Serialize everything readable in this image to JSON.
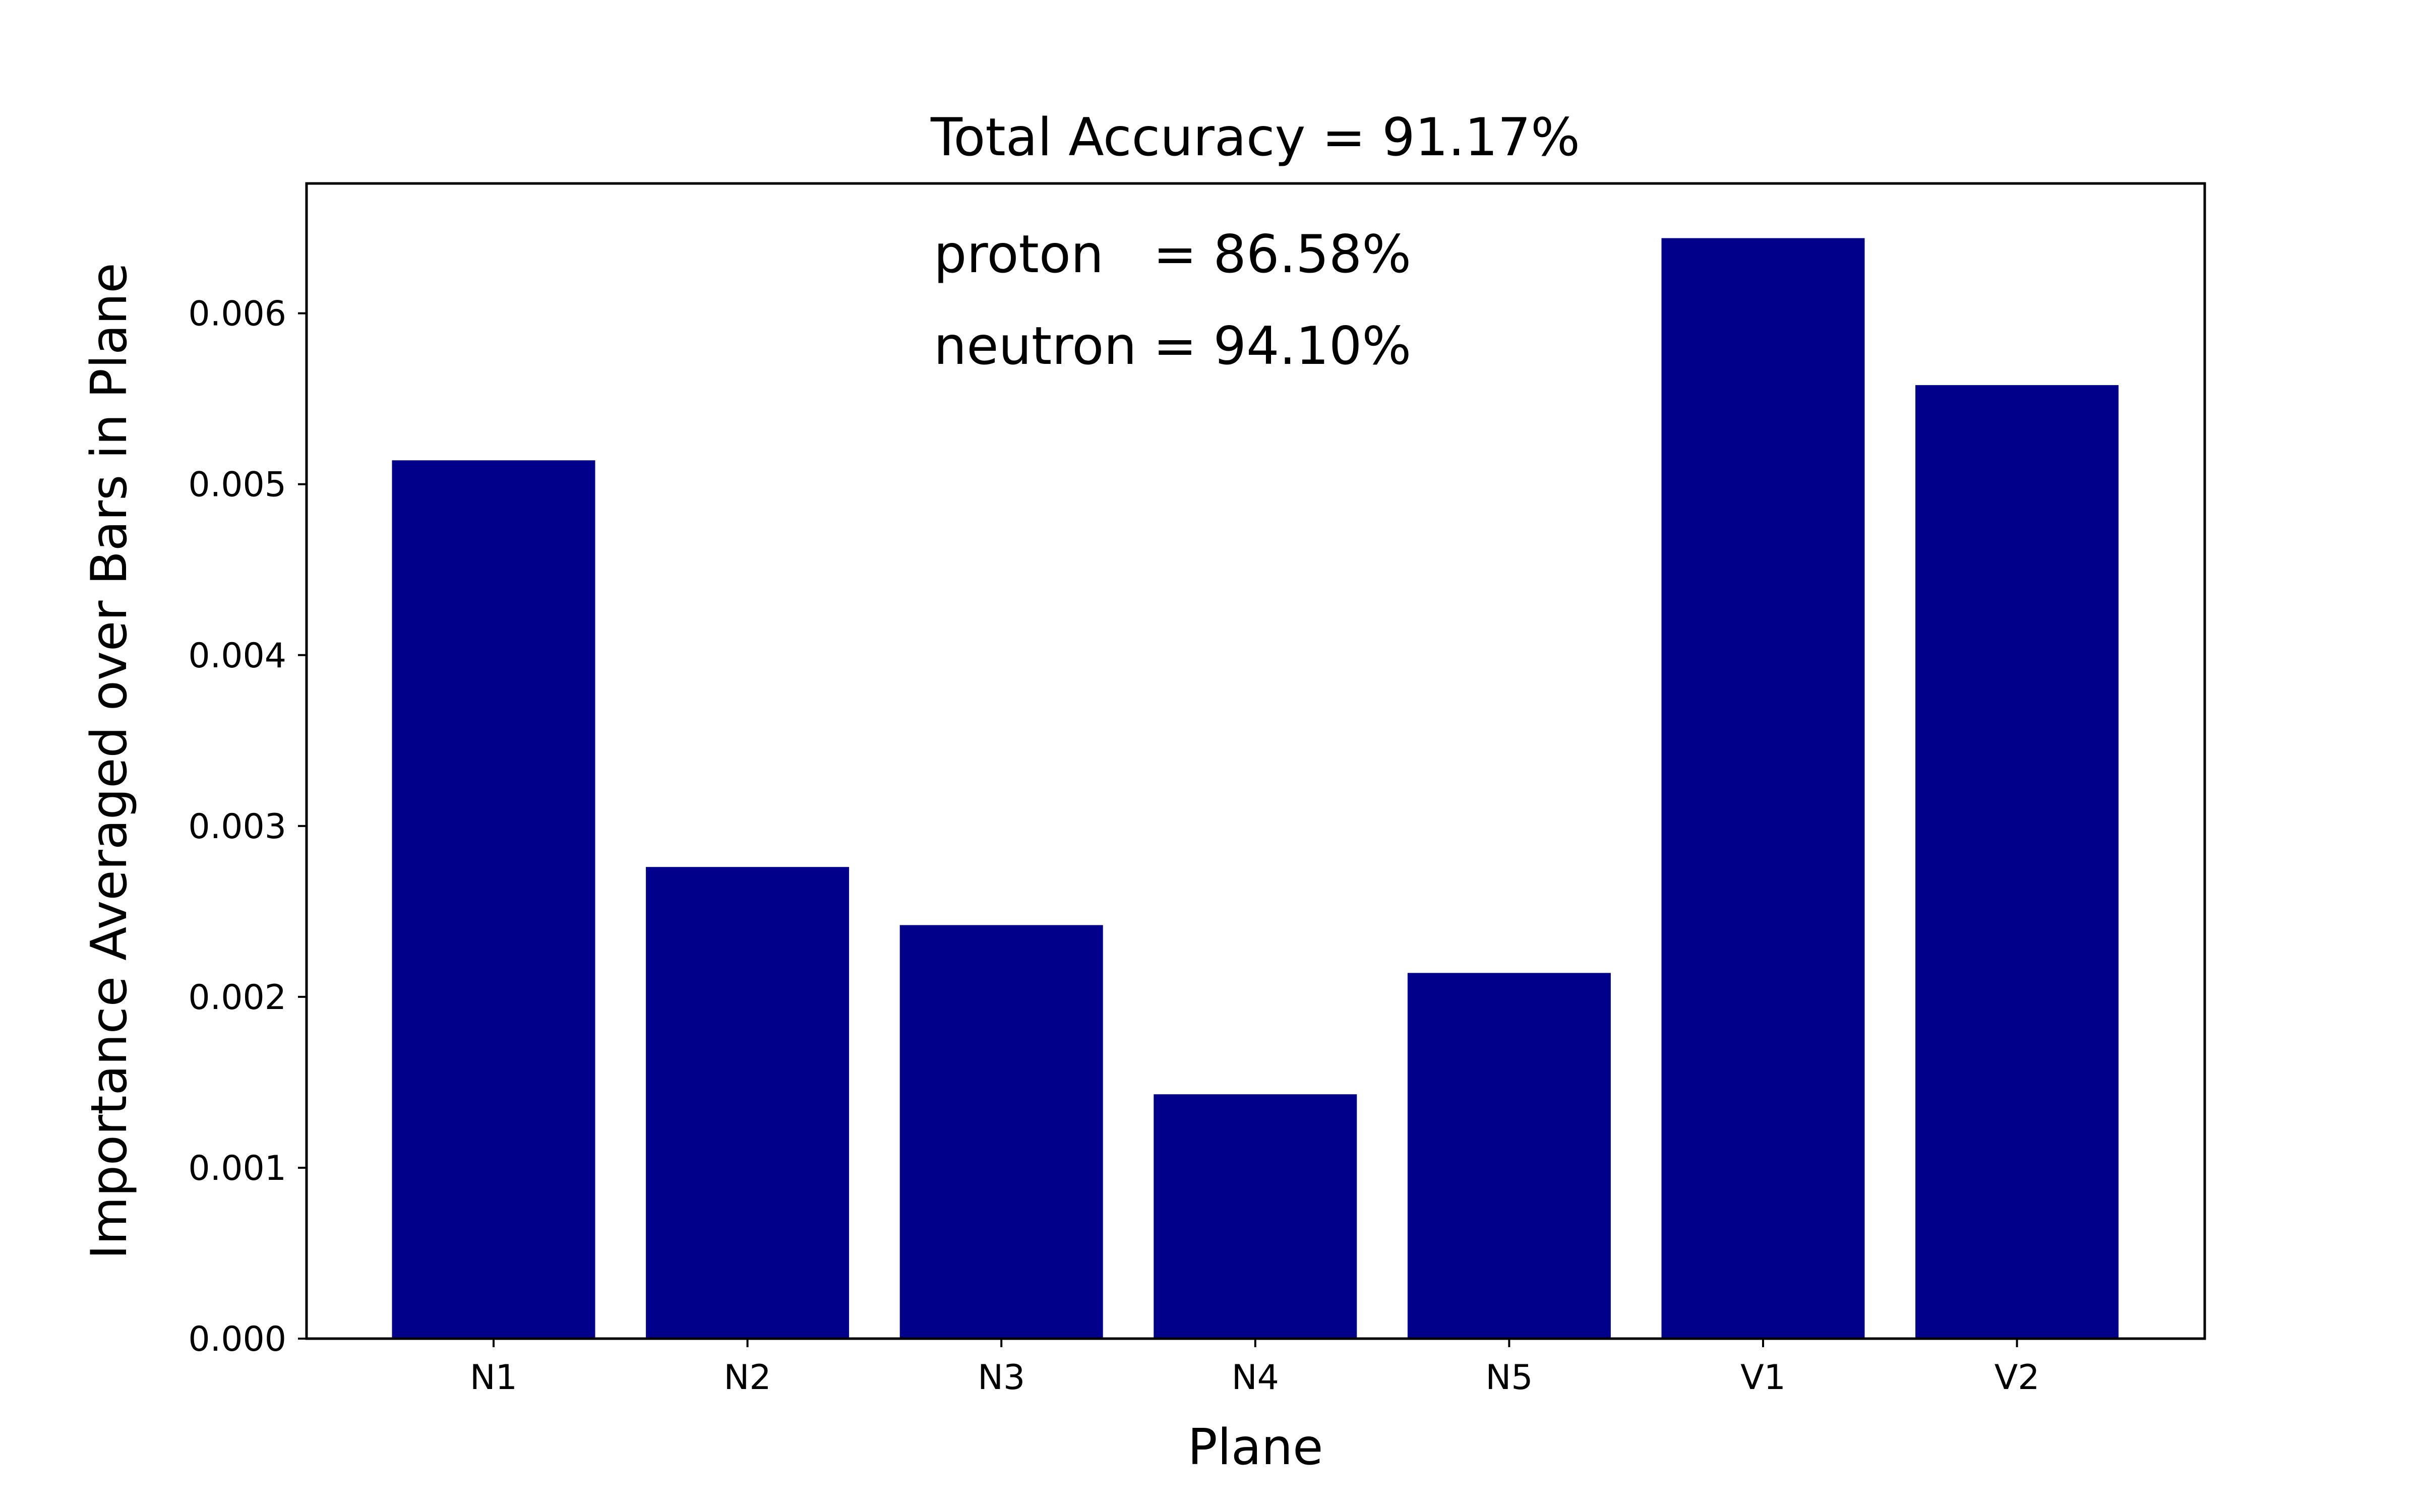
{
  "chart_data": {
    "type": "bar",
    "title": "Total Accuracy = 91.17%",
    "xlabel": "Plane",
    "ylabel": "Importance Averaged over Bars in Plane",
    "categories": [
      "N1",
      "N2",
      "N3",
      "N4",
      "N5",
      "V1",
      "V2"
    ],
    "values": [
      0.00514,
      0.00276,
      0.00242,
      0.00143,
      0.00214,
      0.00644,
      0.00558
    ],
    "ylim": [
      0,
      0.00676
    ],
    "yticks": [
      0.0,
      0.001,
      0.002,
      0.003,
      0.004,
      0.005,
      0.006
    ],
    "ytick_labels": [
      "0.000",
      "0.001",
      "0.002",
      "0.003",
      "0.004",
      "0.005",
      "0.006"
    ],
    "bar_color": "#00008b",
    "grid": false,
    "legend": null,
    "annotations": [
      "proton   = 86.58%",
      "neutron = 94.10%"
    ]
  }
}
